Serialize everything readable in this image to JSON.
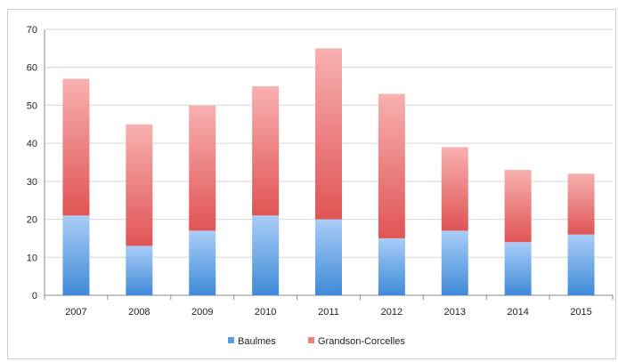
{
  "chart_data": {
    "type": "bar",
    "stacked": true,
    "categories": [
      "2007",
      "2008",
      "2009",
      "2010",
      "2011",
      "2012",
      "2013",
      "2014",
      "2015"
    ],
    "series": [
      {
        "name": "Baulmes",
        "values": [
          21,
          13,
          17,
          21,
          20,
          15,
          17,
          14,
          16
        ],
        "color": "#5a9ee6"
      },
      {
        "name": "Grandson-Corcelles",
        "values": [
          36,
          32,
          33,
          34,
          45,
          38,
          22,
          19,
          16
        ],
        "color": "#f07f7f"
      }
    ],
    "ylim": [
      0,
      70
    ],
    "yticks": [
      "0",
      "10",
      "20",
      "30",
      "40",
      "50",
      "60",
      "70"
    ],
    "grid": true,
    "legend": "bottom"
  }
}
